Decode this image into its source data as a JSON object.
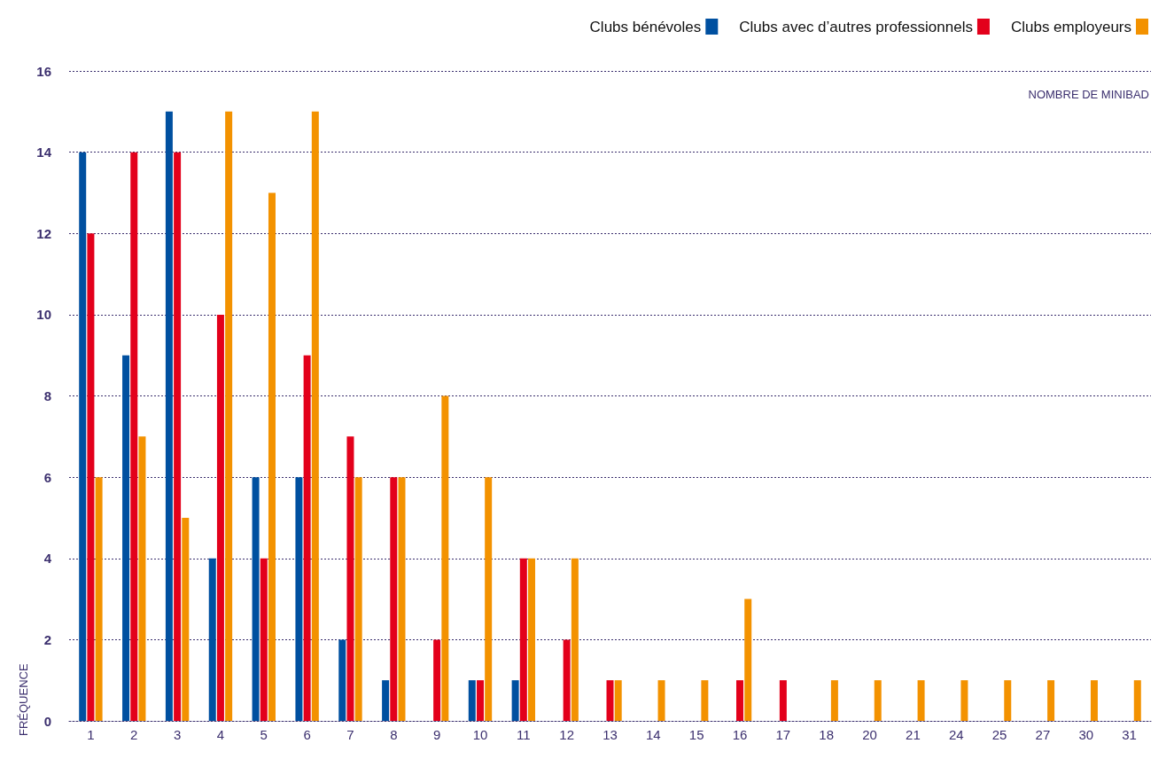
{
  "chart_data": {
    "type": "bar",
    "xlabel": "NOMBRE DE MINIBAD",
    "ylabel": "FRÉQUENCE",
    "categories": [
      "1",
      "2",
      "3",
      "4",
      "5",
      "6",
      "7",
      "8",
      "9",
      "10",
      "11",
      "12",
      "13",
      "14",
      "15",
      "16",
      "17",
      "18",
      "20",
      "21",
      "24",
      "25",
      "27",
      "30",
      "31"
    ],
    "series": [
      {
        "name": "Clubs bénévoles",
        "color": "#0050a0",
        "values": [
          14,
          9,
          15,
          4,
          6,
          6,
          2,
          1,
          0,
          1,
          1,
          0,
          0,
          0,
          0,
          0,
          0,
          0,
          0,
          0,
          0,
          0,
          0,
          0,
          0
        ]
      },
      {
        "name": "Clubs avec d’autres professionnels",
        "color": "#e3001b",
        "values": [
          12,
          14,
          14,
          10,
          4,
          9,
          7,
          6,
          2,
          1,
          4,
          2,
          1,
          0,
          0,
          1,
          1,
          0,
          0,
          0,
          0,
          0,
          0,
          0,
          0
        ]
      },
      {
        "name": "Clubs employeurs",
        "color": "#f39200",
        "values": [
          6,
          7,
          5,
          15,
          13,
          15,
          6,
          6,
          8,
          6,
          4,
          4,
          1,
          1,
          1,
          3,
          0,
          1,
          1,
          1,
          1,
          1,
          1,
          1,
          1
        ]
      }
    ],
    "ylim": [
      0,
      16
    ],
    "yticks": [
      0,
      2,
      4,
      6,
      8,
      10,
      12,
      14,
      16
    ],
    "grid": "y",
    "legend": "top right"
  }
}
